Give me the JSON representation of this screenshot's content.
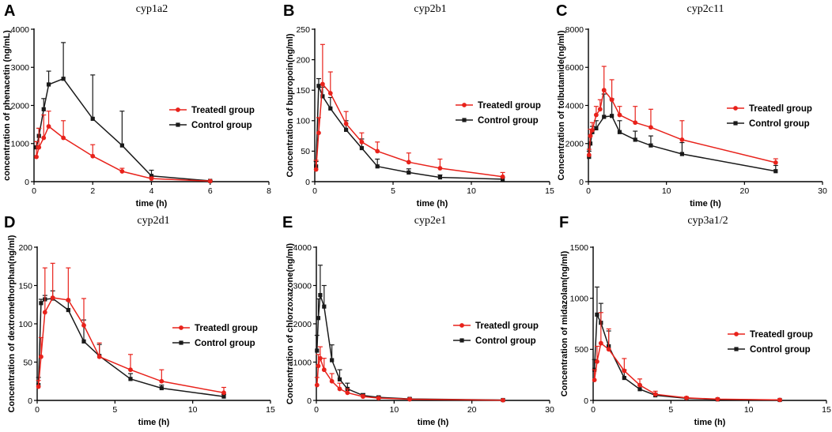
{
  "series_colors": {
    "Treatedl group": "#e8221b",
    "Control group": "#1a1a1a"
  },
  "chart_data": [
    {
      "panel": "A",
      "type": "line",
      "title": "cyp1a2",
      "xlabel": "time (h)",
      "ylabel": "concentration of phenacetin (ng/mL)",
      "xlim": [
        0,
        8
      ],
      "ylim": [
        0,
        4000
      ],
      "xticks": [
        0,
        2,
        4,
        6,
        8
      ],
      "yticks": [
        0,
        1000,
        2000,
        3000,
        4000
      ],
      "legend": "right",
      "series": [
        {
          "name": "Treatedl group",
          "marker": "circle",
          "x": [
            0.083,
            0.167,
            0.33,
            0.5,
            1,
            2,
            3,
            4,
            6
          ],
          "y": [
            650,
            900,
            1150,
            1450,
            1150,
            670,
            270,
            80,
            15
          ],
          "err": [
            400,
            500,
            600,
            400,
            450,
            300,
            80,
            40,
            10
          ]
        },
        {
          "name": "Control group",
          "marker": "square",
          "x": [
            0.083,
            0.167,
            0.33,
            0.5,
            1,
            2,
            3,
            4,
            6
          ],
          "y": [
            900,
            1200,
            1900,
            2550,
            2700,
            1650,
            950,
            150,
            20
          ],
          "err": [
            150,
            200,
            280,
            350,
            950,
            1150,
            900,
            150,
            10
          ]
        }
      ]
    },
    {
      "panel": "B",
      "type": "line",
      "title": "cyp2b1",
      "xlabel": "time (h)",
      "ylabel": "Concentration of bupropoin(ng/ml)",
      "xlim": [
        0,
        15
      ],
      "ylim": [
        0,
        250
      ],
      "xticks": [
        0,
        5,
        10,
        15
      ],
      "yticks": [
        0,
        50,
        100,
        150,
        200,
        250
      ],
      "legend": "right",
      "series": [
        {
          "name": "Treatedl group",
          "marker": "circle",
          "x": [
            0.083,
            0.25,
            0.5,
            1,
            2,
            3,
            4,
            6,
            8,
            12
          ],
          "y": [
            20,
            80,
            160,
            145,
            95,
            65,
            50,
            32,
            22,
            8
          ],
          "err": [
            15,
            25,
            65,
            35,
            20,
            15,
            15,
            15,
            15,
            7
          ]
        },
        {
          "name": "Control group",
          "marker": "square",
          "x": [
            0.083,
            0.25,
            0.5,
            1,
            2,
            3,
            4,
            6,
            8,
            12
          ],
          "y": [
            25,
            157,
            140,
            120,
            85,
            55,
            25,
            15,
            7,
            4
          ],
          "err": [
            8,
            12,
            15,
            18,
            15,
            15,
            12,
            6,
            4,
            3
          ]
        }
      ]
    },
    {
      "panel": "C",
      "type": "line",
      "title": "cyp2c11",
      "xlabel": "time (h)",
      "ylabel": "Concentration of tolbutamide(ng/ml)",
      "xlim": [
        0,
        30
      ],
      "ylim": [
        0,
        8000
      ],
      "xticks": [
        0,
        10,
        20,
        30
      ],
      "yticks": [
        0,
        2000,
        4000,
        6000,
        8000
      ],
      "legend": "right",
      "series": [
        {
          "name": "Treatedl group",
          "marker": "circle",
          "x": [
            0.083,
            0.25,
            0.5,
            1,
            1.5,
            2,
            3,
            4,
            6,
            8,
            12,
            24
          ],
          "y": [
            1400,
            2400,
            2700,
            3500,
            3800,
            4800,
            4300,
            3500,
            3100,
            2850,
            2200,
            1000
          ],
          "err": [
            300,
            350,
            400,
            450,
            500,
            1250,
            1050,
            450,
            850,
            950,
            1000,
            200
          ]
        },
        {
          "name": "Control group",
          "marker": "square",
          "x": [
            0.083,
            0.25,
            0.5,
            1,
            2,
            3,
            4,
            6,
            8,
            12,
            24
          ],
          "y": [
            1300,
            2000,
            2600,
            2800,
            3400,
            3450,
            2600,
            2200,
            1900,
            1450,
            550
          ],
          "err": [
            300,
            400,
            300,
            400,
            1200,
            900,
            600,
            450,
            500,
            600,
            300
          ]
        }
      ]
    },
    {
      "panel": "D",
      "type": "line",
      "title": "cyp2d1",
      "xlabel": "time (h)",
      "ylabel": "Concentration of dextromethorphan(ng/ml)",
      "xlim": [
        0,
        15
      ],
      "ylim": [
        0,
        200
      ],
      "xticks": [
        0,
        5,
        10,
        15
      ],
      "yticks": [
        0,
        50,
        100,
        150,
        200
      ],
      "legend": "right",
      "series": [
        {
          "name": "Treatedl group",
          "marker": "circle",
          "x": [
            0.083,
            0.25,
            0.5,
            1,
            2,
            3,
            4,
            6,
            8,
            12
          ],
          "y": [
            18,
            57,
            115,
            134,
            131,
            98,
            57,
            40,
            25,
            10
          ],
          "err": [
            8,
            25,
            58,
            45,
            42,
            35,
            18,
            20,
            15,
            7
          ]
        },
        {
          "name": "Control group",
          "marker": "square",
          "x": [
            0.083,
            0.25,
            0.5,
            1,
            2,
            3,
            4,
            6,
            8,
            12
          ],
          "y": [
            20,
            127,
            132,
            133,
            118,
            77,
            58,
            28,
            16,
            5
          ],
          "err": [
            10,
            5,
            5,
            10,
            12,
            28,
            15,
            7,
            4,
            3
          ]
        }
      ]
    },
    {
      "panel": "E",
      "type": "line",
      "title": "cyp2e1",
      "xlabel": "time (h)",
      "ylabel": "Concentration of chlorzoxazone(ng/ml)",
      "xlim": [
        0,
        30
      ],
      "ylim": [
        0,
        4000
      ],
      "xticks": [
        0,
        10,
        20,
        30
      ],
      "yticks": [
        0,
        1000,
        2000,
        3000,
        4000
      ],
      "legend": "right",
      "series": [
        {
          "name": "Treatedl group",
          "marker": "circle",
          "x": [
            0.083,
            0.25,
            0.5,
            1,
            2,
            3,
            4,
            6,
            8,
            12,
            24
          ],
          "y": [
            400,
            900,
            1100,
            800,
            500,
            300,
            200,
            100,
            60,
            30,
            5
          ],
          "err": [
            200,
            300,
            300,
            300,
            200,
            150,
            100,
            50,
            30,
            20,
            5
          ]
        },
        {
          "name": "Control group",
          "marker": "square",
          "x": [
            0.083,
            0.25,
            0.5,
            1,
            2,
            3,
            4,
            6,
            8,
            12,
            24
          ],
          "y": [
            1300,
            2150,
            2750,
            2450,
            1050,
            550,
            300,
            130,
            80,
            40,
            10
          ],
          "err": [
            400,
            500,
            780,
            550,
            400,
            250,
            150,
            50,
            30,
            20,
            5
          ]
        }
      ]
    },
    {
      "panel": "F",
      "type": "line",
      "title": "cyp3a1/2",
      "xlabel": "time (h)",
      "ylabel": "Concentration of midazolam(ng/ml)",
      "xlim": [
        0,
        15
      ],
      "ylim": [
        0,
        1500
      ],
      "xticks": [
        0,
        5,
        10,
        15
      ],
      "yticks": [
        0,
        500,
        1000,
        1500
      ],
      "legend": "right",
      "series": [
        {
          "name": "Treatedl group",
          "marker": "circle",
          "x": [
            0.083,
            0.25,
            0.5,
            1,
            2,
            3,
            4,
            6,
            8,
            12
          ],
          "y": [
            200,
            380,
            560,
            500,
            290,
            150,
            60,
            25,
            12,
            5
          ],
          "err": [
            100,
            150,
            300,
            200,
            120,
            60,
            30,
            10,
            6,
            3
          ]
        },
        {
          "name": "Control group",
          "marker": "square",
          "x": [
            0.083,
            0.25,
            0.5,
            1,
            2,
            3,
            4,
            6,
            8,
            12
          ],
          "y": [
            300,
            840,
            760,
            530,
            220,
            110,
            50,
            20,
            10,
            4
          ],
          "err": [
            100,
            270,
            190,
            150,
            80,
            40,
            20,
            10,
            6,
            3
          ]
        }
      ]
    }
  ]
}
